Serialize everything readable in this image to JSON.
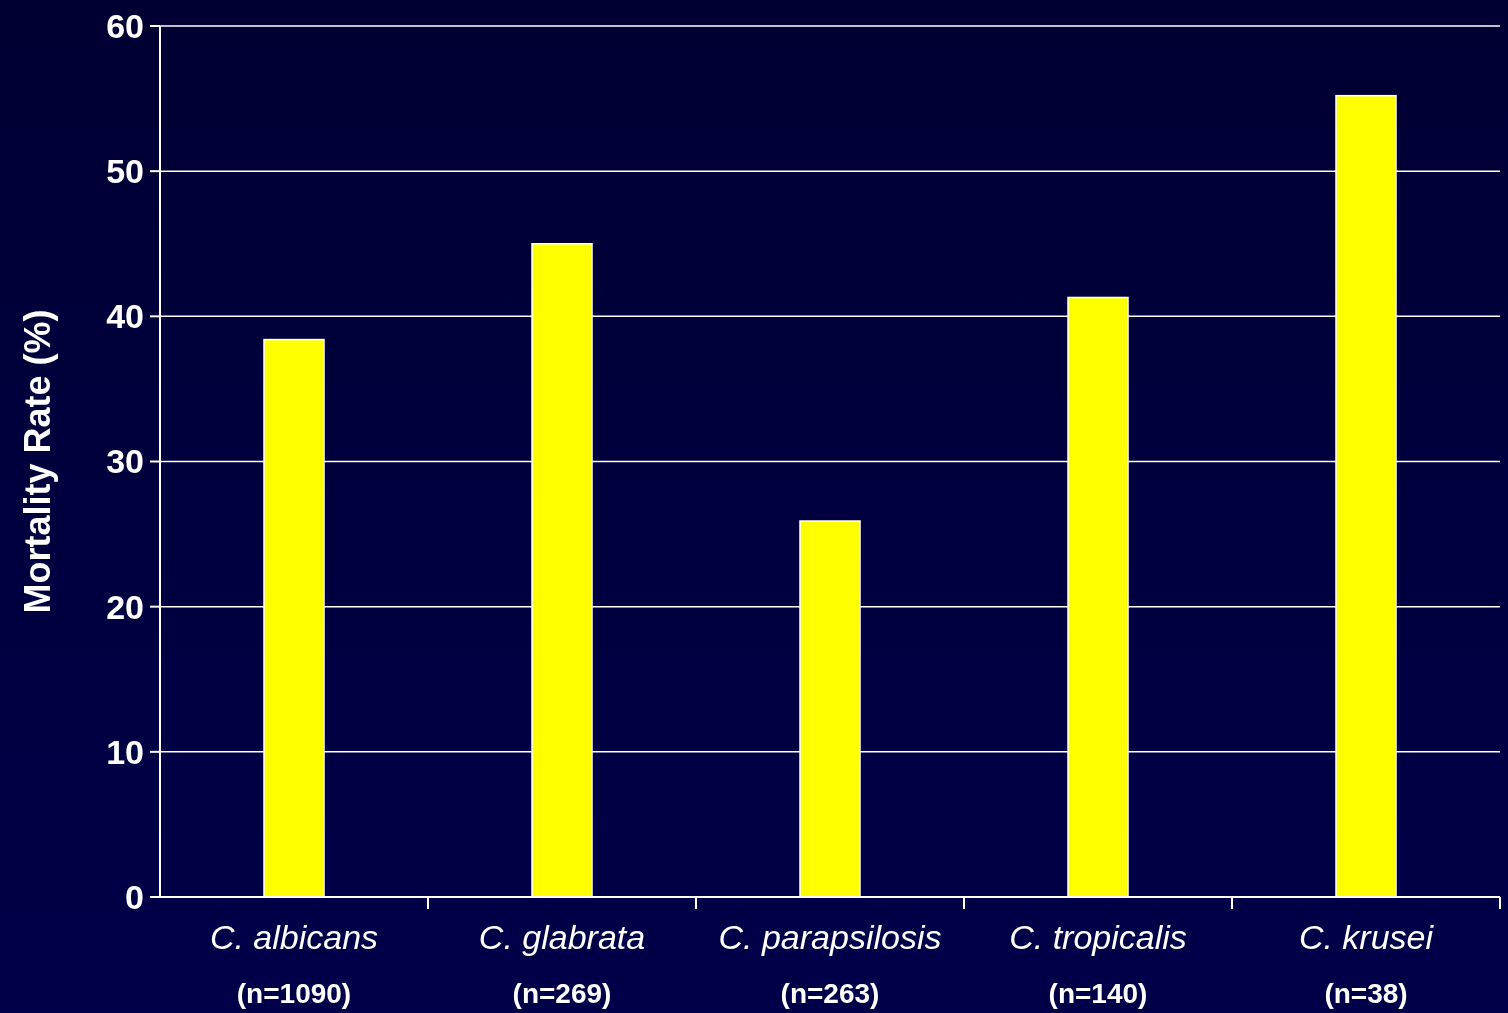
{
  "chart_data": {
    "type": "bar",
    "ylabel": "Mortality Rate (%)",
    "categories": [
      "C. albicans\n(n=1090)",
      "C. glabrata\n(n=269)",
      "C. parapsilosis\n(n=263)",
      "C. tropicalis\n(n=140)",
      "C. krusei\n(n=38)"
    ],
    "values": [
      38.4,
      45,
      25.9,
      41.3,
      55.2
    ],
    "color": "#ffff00",
    "ylim": [
      0,
      60
    ],
    "yticks": [
      0,
      10,
      20,
      30,
      40,
      50,
      60
    ],
    "grid": "y"
  }
}
